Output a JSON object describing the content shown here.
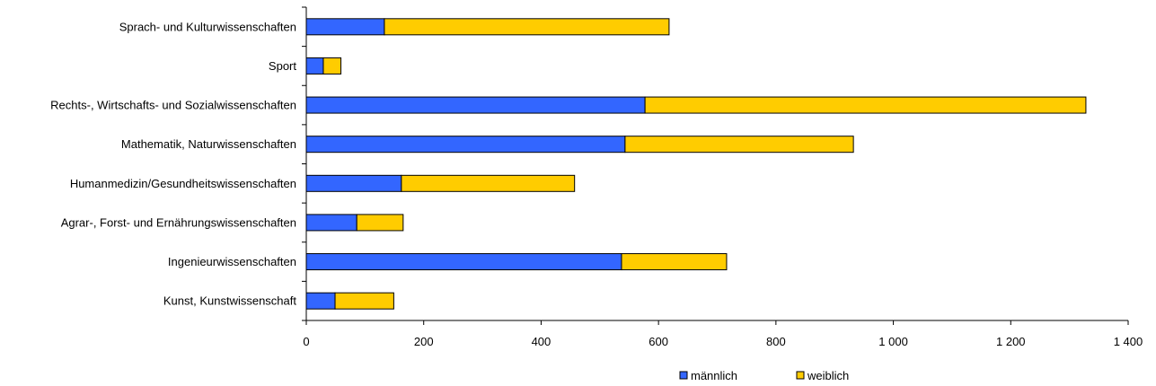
{
  "chart_data": {
    "type": "bar",
    "orientation": "horizontal",
    "stacked": true,
    "categories": [
      "Sprach- und Kulturwissenschaften",
      "Sport",
      "Rechts-, Wirtschafts- und Sozialwissenschaften",
      "Mathematik, Naturwissenschaften",
      "Humanmedizin/Gesundheitswissenschaften",
      "Agrar-, Forst- und Ernährungswissenschaften",
      "Ingenieurwissenschaften",
      "Kunst, Kunstwissenschaft"
    ],
    "series": [
      {
        "name": "männlich",
        "color": "#3366ff",
        "values": [
          133,
          29,
          577,
          543,
          162,
          86,
          537,
          49
        ]
      },
      {
        "name": "weiblich",
        "color": "#ffcc00",
        "values": [
          485,
          30,
          751,
          389,
          295,
          79,
          179,
          100
        ]
      }
    ],
    "xlim": [
      0,
      1400
    ],
    "xticks": [
      0,
      200,
      400,
      600,
      800,
      1000,
      1200,
      1400
    ],
    "xtick_labels": [
      "0",
      "200",
      "400",
      "600",
      "800",
      "1 000",
      "1 200",
      "1 400"
    ],
    "grid": false,
    "legend_position": "bottom"
  }
}
